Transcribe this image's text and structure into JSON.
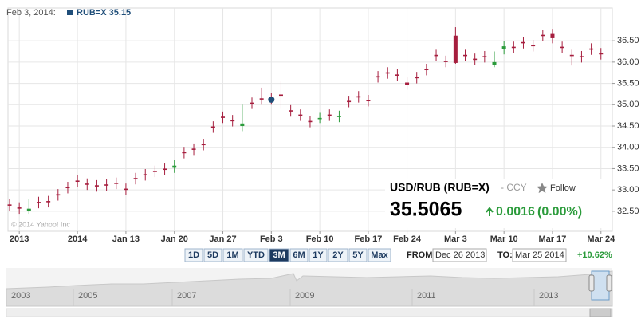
{
  "header": {
    "date": "Feb 3, 2014:",
    "symbol_value": "RUB=X 35.15"
  },
  "chart_data": {
    "type": "candlestick",
    "categories": [
      null,
      "2013",
      null,
      null,
      null,
      null,
      null,
      "2014",
      null,
      null,
      null,
      null,
      "Jan 13",
      null,
      null,
      null,
      null,
      "Jan 20",
      null,
      null,
      null,
      null,
      "Jan 27",
      null,
      null,
      null,
      null,
      "Feb 3",
      null,
      null,
      null,
      null,
      "Feb 10",
      null,
      null,
      null,
      null,
      "Feb 17",
      null,
      null,
      null,
      "Feb 24",
      null,
      null,
      null,
      null,
      "Mar 3",
      null,
      null,
      null,
      null,
      "Mar 10",
      null,
      null,
      null,
      null,
      "Mar 17",
      null,
      null,
      null,
      null,
      "Mar 24"
    ],
    "open": [
      32.66,
      32.59,
      32.5,
      32.72,
      32.74,
      32.9,
      33.07,
      33.22,
      33.15,
      33.11,
      33.13,
      33.17,
      33.03,
      33.28,
      33.37,
      33.45,
      33.5,
      33.52,
      33.89,
      33.97,
      34.08,
      34.49,
      34.72,
      34.64,
      34.5,
      35.05,
      35.15,
      35.15,
      35.24,
      34.87,
      34.77,
      34.62,
      34.66,
      34.77,
      34.71,
      35.09,
      35.2,
      35.11,
      35.67,
      35.76,
      35.71,
      35.52,
      35.65,
      35.84,
      36.17,
      36.03,
      36.62,
      36.17,
      36.08,
      36.14,
      35.94,
      36.3,
      36.36,
      36.47,
      36.4,
      36.64,
      36.66,
      36.36,
      36.17,
      36.14,
      36.32,
      36.21
    ],
    "high": [
      32.78,
      32.71,
      32.78,
      32.84,
      32.86,
      33.02,
      33.19,
      33.34,
      33.27,
      33.23,
      33.25,
      33.29,
      33.15,
      33.4,
      33.49,
      33.57,
      33.62,
      33.7,
      34.01,
      34.09,
      34.2,
      34.61,
      34.84,
      34.76,
      35.0,
      35.17,
      35.4,
      35.27,
      35.55,
      34.99,
      34.89,
      34.74,
      34.81,
      34.89,
      34.86,
      35.21,
      35.32,
      35.23,
      35.79,
      35.88,
      35.83,
      35.64,
      35.77,
      35.96,
      36.29,
      36.15,
      36.82,
      36.29,
      36.2,
      36.26,
      36.25,
      36.49,
      36.48,
      36.59,
      36.52,
      36.76,
      36.78,
      36.48,
      36.29,
      36.26,
      36.44,
      36.33
    ],
    "low": [
      32.51,
      32.44,
      32.44,
      32.57,
      32.59,
      32.75,
      32.92,
      33.07,
      33.0,
      32.96,
      32.98,
      33.02,
      32.88,
      33.13,
      33.22,
      33.3,
      33.35,
      33.4,
      33.74,
      33.82,
      33.93,
      34.34,
      34.57,
      34.49,
      34.38,
      34.9,
      35.0,
      35.0,
      34.9,
      34.72,
      34.62,
      34.47,
      34.57,
      34.62,
      34.59,
      34.94,
      35.05,
      34.96,
      35.52,
      35.61,
      35.56,
      35.35,
      35.5,
      35.69,
      36.02,
      35.88,
      35.96,
      36.02,
      35.93,
      35.99,
      35.88,
      36.18,
      36.21,
      36.32,
      36.25,
      36.49,
      36.44,
      36.21,
      35.92,
      35.99,
      36.17,
      36.06
    ],
    "close": [
      32.63,
      32.56,
      32.56,
      32.69,
      32.71,
      32.87,
      33.04,
      33.19,
      33.12,
      33.08,
      33.1,
      33.14,
      33.0,
      33.25,
      33.34,
      33.42,
      33.47,
      33.57,
      33.86,
      33.94,
      34.05,
      34.46,
      34.69,
      34.61,
      34.56,
      35.02,
      35.12,
      35.12,
      35.21,
      34.84,
      34.74,
      34.59,
      34.69,
      34.74,
      34.74,
      35.06,
      35.17,
      35.08,
      35.64,
      35.73,
      35.68,
      35.47,
      35.62,
      35.81,
      36.14,
      36.0,
      35.98,
      36.14,
      36.05,
      36.11,
      36.0,
      36.37,
      36.33,
      36.44,
      36.37,
      36.61,
      36.56,
      36.33,
      36.14,
      36.11,
      36.29,
      36.18
    ],
    "up_color": "#2b9b3b",
    "down_color": "#a61e3e",
    "marker_color": "#1f4e79",
    "marker_index": 27,
    "ylim": [
      32.03,
      37.27
    ],
    "yticks": [
      {
        "value": 32.5,
        "label": "32.50"
      },
      {
        "value": 33,
        "label": "33.00"
      },
      {
        "value": 33.5,
        "label": "33.50"
      },
      {
        "value": 34,
        "label": "34.00"
      },
      {
        "value": 34.5,
        "label": "34.50"
      },
      {
        "value": 35,
        "label": "35.00"
      },
      {
        "value": 35.5,
        "label": "35.50"
      },
      {
        "value": 36,
        "label": "36.00"
      },
      {
        "value": 36.5,
        "label": "36.50"
      }
    ],
    "grid": true,
    "copyright": "© 2014 Yahoo! Inc"
  },
  "quote": {
    "name": "USD/RUB (RUB=X)",
    "exchange": "- CCY",
    "follow": "Follow",
    "price": "35.5065",
    "change": "0.0016",
    "change_pct": "(0.00%)"
  },
  "controls": {
    "ranges": [
      "1D",
      "5D",
      "1M",
      "YTD",
      "3M",
      "6M",
      "1Y",
      "2Y",
      "5Y",
      "Max"
    ],
    "selected": "3M",
    "from_label": "FROM:",
    "from": "Dec 26 2013",
    "to_label": "TO:",
    "to": "Mar 25 2014",
    "period_change": "+10.62%"
  },
  "navigator": {
    "years": [
      "2003",
      "2005",
      "2007",
      "2009",
      "2011",
      "2013"
    ]
  }
}
